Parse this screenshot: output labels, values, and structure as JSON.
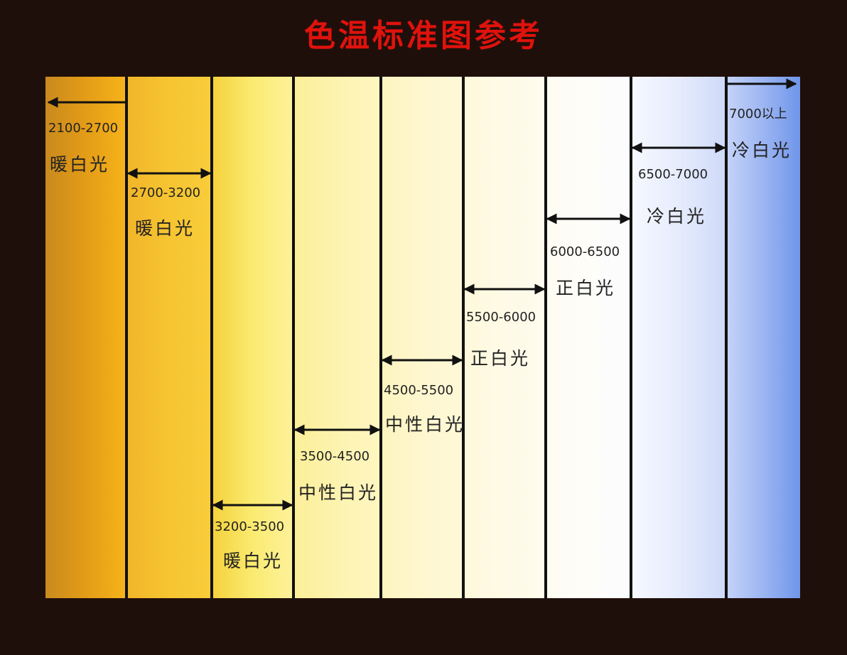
{
  "title": "色温标准图参考",
  "colors": {
    "title": "#e0120c",
    "background": "#1f0f0b",
    "divider": "#111111",
    "text": "#222222"
  },
  "bands": [
    {
      "range": "2100-2700",
      "name": "暖白光",
      "gradient": [
        "#c98a1e",
        "#e39c17",
        "#f6b31a"
      ]
    },
    {
      "range": "2700-3200",
      "name": "暖白光",
      "gradient": [
        "#f1b52a",
        "#f6c531",
        "#f8cc3a"
      ]
    },
    {
      "range": "3200-3500",
      "name": "暖白光",
      "gradient": [
        "#f5d23c",
        "#faeb70",
        "#fdf19a"
      ]
    },
    {
      "range": "3500-4500",
      "name": "中性白光",
      "gradient": [
        "#fbef98",
        "#fdf3b0",
        "#fef6c0"
      ]
    },
    {
      "range": "4500-5500",
      "name": "中性白光",
      "gradient": [
        "#fdf4c0",
        "#fef7cf",
        "#fef8d8"
      ]
    },
    {
      "range": "5500-6000",
      "name": "正白光",
      "gradient": [
        "#fef8db",
        "#fefae6",
        "#fffbee"
      ]
    },
    {
      "range": "6000-6500",
      "name": "正白光",
      "gradient": [
        "#fffcf3",
        "#fefdf9",
        "#fbfcff"
      ]
    },
    {
      "range": "6500-7000",
      "name": "冷白光",
      "gradient": [
        "#f6f8ff",
        "#e6ecfd",
        "#cfdaf9"
      ]
    },
    {
      "range": "7000以上",
      "name": "冷白光",
      "gradient": [
        "#c3d2f8",
        "#9cb5f2",
        "#6f96ea"
      ]
    }
  ]
}
